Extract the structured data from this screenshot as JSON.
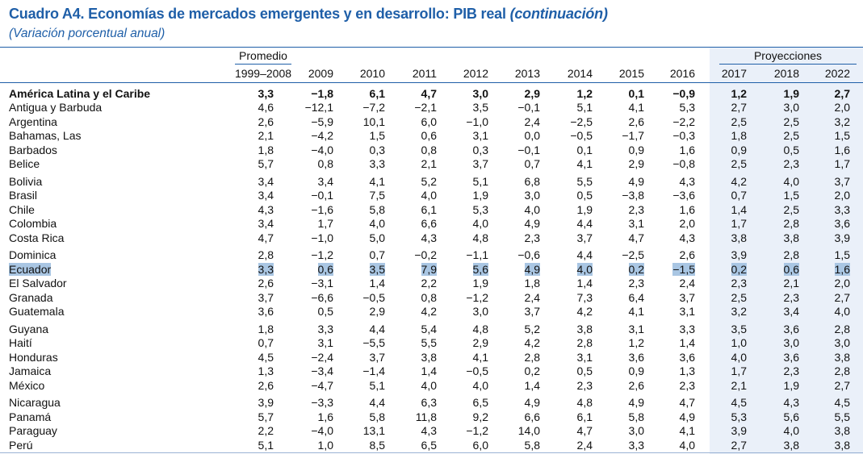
{
  "title": {
    "main": "Cuadro A4. Economías de mercados emergentes y en desarrollo: PIB real",
    "continuation": "(continuación)"
  },
  "subtitle": "(Variación porcentual anual)",
  "header": {
    "promedio": "Promedio",
    "proyecciones": "Proyecciones",
    "years": [
      "1999–2008",
      "2009",
      "2010",
      "2011",
      "2012",
      "2013",
      "2014",
      "2015",
      "2016",
      "2017",
      "2018",
      "2022"
    ]
  },
  "colors": {
    "accent": "#1f5fa8",
    "projection_bg": "#eaf0f9",
    "highlight": "#a9c6e3"
  },
  "highlight_row": "Ecuador",
  "rows": [
    {
      "name": "América Latina y el Caribe",
      "bold": true,
      "values": [
        "3,3",
        "−1,8",
        "6,1",
        "4,7",
        "3,0",
        "2,9",
        "1,2",
        "0,1",
        "−0,9",
        "1,2",
        "1,9",
        "2,7"
      ]
    },
    {
      "name": "Antigua y Barbuda",
      "values": [
        "4,6",
        "−12,1",
        "−7,2",
        "−2,1",
        "3,5",
        "−0,1",
        "5,1",
        "4,1",
        "5,3",
        "2,7",
        "3,0",
        "2,0"
      ]
    },
    {
      "name": "Argentina",
      "values": [
        "2,6",
        "−5,9",
        "10,1",
        "6,0",
        "−1,0",
        "2,4",
        "−2,5",
        "2,6",
        "−2,2",
        "2,5",
        "2,5",
        "3,2"
      ]
    },
    {
      "name": "Bahamas, Las",
      "values": [
        "2,1",
        "−4,2",
        "1,5",
        "0,6",
        "3,1",
        "0,0",
        "−0,5",
        "−1,7",
        "−0,3",
        "1,8",
        "2,5",
        "1,5"
      ]
    },
    {
      "name": "Barbados",
      "values": [
        "1,8",
        "−4,0",
        "0,3",
        "0,8",
        "0,3",
        "−0,1",
        "0,1",
        "0,9",
        "1,6",
        "0,9",
        "0,5",
        "1,6"
      ]
    },
    {
      "name": "Belice",
      "values": [
        "5,7",
        "0,8",
        "3,3",
        "2,1",
        "3,7",
        "0,7",
        "4,1",
        "2,9",
        "−0,8",
        "2,5",
        "2,3",
        "1,7"
      ]
    },
    {
      "name": "Bolivia",
      "values": [
        "3,4",
        "3,4",
        "4,1",
        "5,2",
        "5,1",
        "6,8",
        "5,5",
        "4,9",
        "4,3",
        "4,2",
        "4,0",
        "3,7"
      ]
    },
    {
      "name": "Brasil",
      "values": [
        "3,4",
        "−0,1",
        "7,5",
        "4,0",
        "1,9",
        "3,0",
        "0,5",
        "−3,8",
        "−3,6",
        "0,7",
        "1,5",
        "2,0"
      ]
    },
    {
      "name": "Chile",
      "values": [
        "4,3",
        "−1,6",
        "5,8",
        "6,1",
        "5,3",
        "4,0",
        "1,9",
        "2,3",
        "1,6",
        "1,4",
        "2,5",
        "3,3"
      ]
    },
    {
      "name": "Colombia",
      "values": [
        "3,4",
        "1,7",
        "4,0",
        "6,6",
        "4,0",
        "4,9",
        "4,4",
        "3,1",
        "2,0",
        "1,7",
        "2,8",
        "3,6"
      ]
    },
    {
      "name": "Costa Rica",
      "values": [
        "4,7",
        "−1,0",
        "5,0",
        "4,3",
        "4,8",
        "2,3",
        "3,7",
        "4,7",
        "4,3",
        "3,8",
        "3,8",
        "3,9"
      ]
    },
    {
      "name": "Dominica",
      "values": [
        "2,8",
        "−1,2",
        "0,7",
        "−0,2",
        "−1,1",
        "−0,6",
        "4,4",
        "−2,5",
        "2,6",
        "3,9",
        "2,8",
        "1,5"
      ]
    },
    {
      "name": "Ecuador",
      "highlight": true,
      "values": [
        "3,3",
        "0,6",
        "3,5",
        "7,9",
        "5,6",
        "4,9",
        "4,0",
        "0,2",
        "−1,5",
        "0,2",
        "0,6",
        "1,6"
      ]
    },
    {
      "name": "El Salvador",
      "values": [
        "2,6",
        "−3,1",
        "1,4",
        "2,2",
        "1,9",
        "1,8",
        "1,4",
        "2,3",
        "2,4",
        "2,3",
        "2,1",
        "2,0"
      ]
    },
    {
      "name": "Granada",
      "values": [
        "3,7",
        "−6,6",
        "−0,5",
        "0,8",
        "−1,2",
        "2,4",
        "7,3",
        "6,4",
        "3,7",
        "2,5",
        "2,3",
        "2,7"
      ]
    },
    {
      "name": "Guatemala",
      "values": [
        "3,6",
        "0,5",
        "2,9",
        "4,2",
        "3,0",
        "3,7",
        "4,2",
        "4,1",
        "3,1",
        "3,2",
        "3,4",
        "4,0"
      ]
    },
    {
      "name": "Guyana",
      "values": [
        "1,8",
        "3,3",
        "4,4",
        "5,4",
        "4,8",
        "5,2",
        "3,8",
        "3,1",
        "3,3",
        "3,5",
        "3,6",
        "2,8"
      ]
    },
    {
      "name": "Haití",
      "values": [
        "0,7",
        "3,1",
        "−5,5",
        "5,5",
        "2,9",
        "4,2",
        "2,8",
        "1,2",
        "1,4",
        "1,0",
        "3,0",
        "3,0"
      ]
    },
    {
      "name": "Honduras",
      "values": [
        "4,5",
        "−2,4",
        "3,7",
        "3,8",
        "4,1",
        "2,8",
        "3,1",
        "3,6",
        "3,6",
        "4,0",
        "3,6",
        "3,8"
      ]
    },
    {
      "name": "Jamaica",
      "values": [
        "1,3",
        "−3,4",
        "−1,4",
        "1,4",
        "−0,5",
        "0,2",
        "0,5",
        "0,9",
        "1,3",
        "1,7",
        "2,3",
        "2,8"
      ]
    },
    {
      "name": "México",
      "values": [
        "2,6",
        "−4,7",
        "5,1",
        "4,0",
        "4,0",
        "1,4",
        "2,3",
        "2,6",
        "2,3",
        "2,1",
        "1,9",
        "2,7"
      ]
    },
    {
      "name": "Nicaragua",
      "values": [
        "3,9",
        "−3,3",
        "4,4",
        "6,3",
        "6,5",
        "4,9",
        "4,8",
        "4,9",
        "4,7",
        "4,5",
        "4,3",
        "4,5"
      ]
    },
    {
      "name": "Panamá",
      "values": [
        "5,7",
        "1,6",
        "5,8",
        "11,8",
        "9,2",
        "6,6",
        "6,1",
        "5,8",
        "4,9",
        "5,3",
        "5,6",
        "5,5"
      ]
    },
    {
      "name": "Paraguay",
      "values": [
        "2,2",
        "−4,0",
        "13,1",
        "4,3",
        "−1,2",
        "14,0",
        "4,7",
        "3,0",
        "4,1",
        "3,9",
        "4,0",
        "3,8"
      ]
    },
    {
      "name": "Perú",
      "values": [
        "5,1",
        "1,0",
        "8,5",
        "6,5",
        "6,0",
        "5,8",
        "2,4",
        "3,3",
        "4,0",
        "2,7",
        "3,8",
        "3,8"
      ]
    }
  ]
}
